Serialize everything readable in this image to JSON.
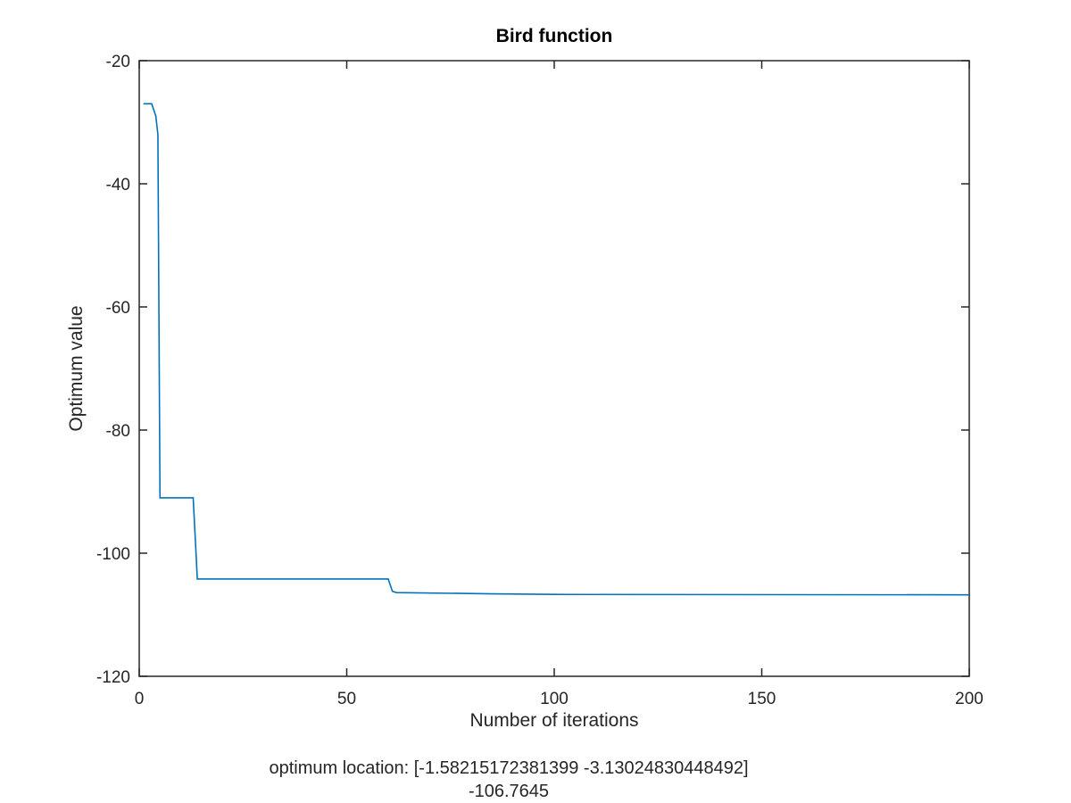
{
  "chart_data": {
    "type": "line",
    "title": "Bird function",
    "xlabel": "Number of iterations",
    "ylabel": "Optimum value",
    "xlim": [
      0,
      200
    ],
    "ylim": [
      -120,
      -20
    ],
    "xticks": [
      0,
      50,
      100,
      150,
      200
    ],
    "yticks": [
      -120,
      -100,
      -80,
      -60,
      -40,
      -20
    ],
    "grid": false,
    "series": [
      {
        "color": "#0072bd",
        "x": [
          1,
          3,
          4,
          4.5,
          5,
          13,
          14,
          60,
          61,
          62,
          85,
          100,
          200
        ],
        "y": [
          -27,
          -27,
          -29,
          -32,
          -91,
          -91,
          -104.2,
          -104.2,
          -106.2,
          -106.4,
          -106.6,
          -106.7,
          -106.7645
        ]
      }
    ]
  },
  "caption": {
    "line1": "optimum location: [-1.58215172381399 -3.13024830448492]",
    "line2": "-106.7645"
  }
}
